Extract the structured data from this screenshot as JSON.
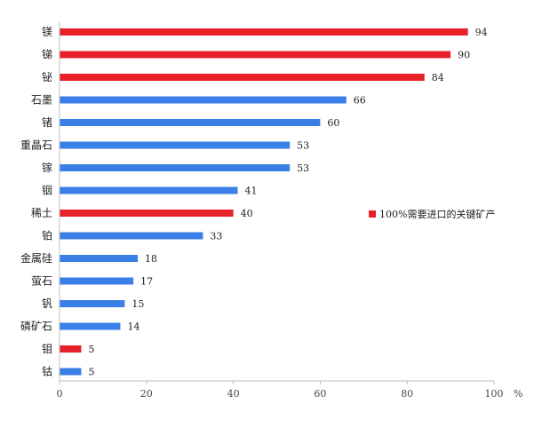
{
  "chart_data": {
    "type": "bar",
    "orientation": "horizontal",
    "categories": [
      "镁",
      "锑",
      "铋",
      "石墨",
      "锗",
      "重晶石",
      "镓",
      "铟",
      "稀土",
      "铂",
      "金属硅",
      "萤石",
      "钒",
      "磷矿石",
      "钼",
      "钴"
    ],
    "values": [
      94,
      90,
      84,
      66,
      60,
      53,
      53,
      41,
      40,
      33,
      18,
      17,
      15,
      14,
      5,
      5
    ],
    "highlight": [
      true,
      true,
      true,
      false,
      false,
      false,
      false,
      false,
      true,
      false,
      false,
      false,
      false,
      false,
      true,
      false
    ],
    "xlim": [
      0,
      100
    ],
    "xticks": [
      0,
      20,
      40,
      60,
      80,
      100
    ],
    "xunit": "%",
    "legend": {
      "label": "100%需要进口的关键矿产",
      "position": "right"
    },
    "colors": {
      "highlight": "#e8202a",
      "normal": "#3a7ee8"
    },
    "grid": false
  }
}
